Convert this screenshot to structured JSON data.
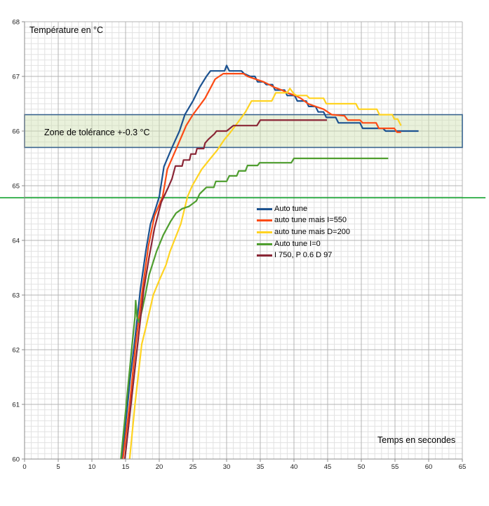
{
  "chart_data": {
    "type": "line",
    "title": "",
    "ylabel": "Température en °C",
    "xlabel": "Temps en secondes",
    "xlim": [
      0,
      65
    ],
    "ylim": [
      60,
      68
    ],
    "x_ticks": [
      0,
      5,
      10,
      15,
      20,
      25,
      30,
      35,
      40,
      45,
      50,
      55,
      60,
      65
    ],
    "y_ticks": [
      60,
      61,
      62,
      63,
      64,
      65,
      66,
      67,
      68
    ],
    "x_minor_step": 1,
    "y_minor_step": 0.1,
    "grid": true,
    "legend_position": "inside-middle",
    "tolerance_zone": {
      "label": "Zone de tolérance +-0.3 °C",
      "y_from": 65.7,
      "y_to": 66.3,
      "fill": "#cfdfb0",
      "fill_opacity": 0.45,
      "border": "#3a648f"
    },
    "reference_line": {
      "y": 64.78,
      "color": "#14a330"
    },
    "series": [
      {
        "name": "Auto tune",
        "color": "#1c5290",
        "points": [
          [
            14.45,
            60
          ],
          [
            15.3,
            61
          ],
          [
            15.7,
            61.5
          ],
          [
            16.3,
            62.1
          ],
          [
            17.2,
            63.1
          ],
          [
            18.0,
            63.8
          ],
          [
            18.7,
            64.3
          ],
          [
            19.5,
            64.6
          ],
          [
            20.0,
            64.8
          ],
          [
            20.7,
            65.35
          ],
          [
            21.9,
            65.7
          ],
          [
            23.0,
            66.0
          ],
          [
            23.8,
            66.3
          ],
          [
            25.0,
            66.55
          ],
          [
            26.0,
            66.8
          ],
          [
            27.0,
            67.0
          ],
          [
            27.6,
            67.1
          ],
          [
            29.7,
            67.1
          ],
          [
            30.0,
            67.2
          ],
          [
            30.4,
            67.1
          ],
          [
            32.2,
            67.1
          ],
          [
            32.6,
            67.05
          ],
          [
            33.5,
            67.0
          ],
          [
            34.2,
            67.0
          ],
          [
            34.6,
            66.9
          ],
          [
            35.5,
            66.9
          ],
          [
            35.9,
            66.85
          ],
          [
            36.8,
            66.85
          ],
          [
            37.2,
            66.75
          ],
          [
            38.6,
            66.75
          ],
          [
            39.0,
            66.65
          ],
          [
            40.1,
            66.65
          ],
          [
            40.5,
            66.55
          ],
          [
            41.8,
            66.55
          ],
          [
            42.2,
            66.45
          ],
          [
            43.2,
            66.45
          ],
          [
            43.6,
            66.35
          ],
          [
            44.4,
            66.35
          ],
          [
            44.8,
            66.25
          ],
          [
            46.2,
            66.25
          ],
          [
            46.6,
            66.15
          ],
          [
            49.8,
            66.15
          ],
          [
            50.2,
            66.05
          ],
          [
            53.2,
            66.05
          ],
          [
            53.6,
            66.0
          ],
          [
            58.5,
            66.0
          ]
        ]
      },
      {
        "name": "auto tune mais I=550",
        "color": "#fc4a14",
        "points": [
          [
            14.6,
            60
          ],
          [
            15.6,
            61
          ],
          [
            16.5,
            62.1
          ],
          [
            17.5,
            63.1
          ],
          [
            18.4,
            63.9
          ],
          [
            19.3,
            64.45
          ],
          [
            20.5,
            64.8
          ],
          [
            21.2,
            65.3
          ],
          [
            22.6,
            65.7
          ],
          [
            24.0,
            66.1
          ],
          [
            25.0,
            66.3
          ],
          [
            26.8,
            66.6
          ],
          [
            28.3,
            66.95
          ],
          [
            29.5,
            67.05
          ],
          [
            32.5,
            67.05
          ],
          [
            33.1,
            67.0
          ],
          [
            34.3,
            66.95
          ],
          [
            35.5,
            66.9
          ],
          [
            36.3,
            66.85
          ],
          [
            37.1,
            66.8
          ],
          [
            38.2,
            66.75
          ],
          [
            39.0,
            66.7
          ],
          [
            40.2,
            66.65
          ],
          [
            41.0,
            66.6
          ],
          [
            42.1,
            66.5
          ],
          [
            43.2,
            66.45
          ],
          [
            44.4,
            66.4
          ],
          [
            45.0,
            66.35
          ],
          [
            45.6,
            66.3
          ],
          [
            47.5,
            66.28
          ],
          [
            48.0,
            66.2
          ],
          [
            49.8,
            66.2
          ],
          [
            50.2,
            66.15
          ],
          [
            52.2,
            66.15
          ],
          [
            52.6,
            66.05
          ],
          [
            54.9,
            66.05
          ],
          [
            55.3,
            65.98
          ],
          [
            55.9,
            65.98
          ]
        ]
      },
      {
        "name": "auto tune mais D=200",
        "color": "#ffd321",
        "points": [
          [
            15.6,
            60
          ],
          [
            16.4,
            61
          ],
          [
            17.4,
            62.1
          ],
          [
            18.0,
            62.4
          ],
          [
            19.1,
            63.0
          ],
          [
            20.1,
            63.3
          ],
          [
            21.0,
            63.55
          ],
          [
            21.6,
            63.8
          ],
          [
            23.2,
            64.3
          ],
          [
            24.2,
            64.8
          ],
          [
            24.9,
            65.0
          ],
          [
            26.3,
            65.3
          ],
          [
            27.6,
            65.5
          ],
          [
            28.6,
            65.65
          ],
          [
            29.7,
            65.85
          ],
          [
            30.4,
            65.95
          ],
          [
            31.8,
            66.18
          ],
          [
            32.8,
            66.35
          ],
          [
            33.7,
            66.55
          ],
          [
            36.7,
            66.55
          ],
          [
            37.3,
            66.7
          ],
          [
            39.0,
            66.7
          ],
          [
            39.4,
            66.78
          ],
          [
            40.0,
            66.68
          ],
          [
            40.4,
            66.65
          ],
          [
            41.9,
            66.65
          ],
          [
            42.3,
            66.6
          ],
          [
            44.4,
            66.6
          ],
          [
            44.8,
            66.5
          ],
          [
            49.2,
            66.5
          ],
          [
            49.6,
            66.4
          ],
          [
            52.3,
            66.4
          ],
          [
            52.7,
            66.3
          ],
          [
            54.6,
            66.3
          ],
          [
            54.9,
            66.22
          ],
          [
            55.4,
            66.22
          ],
          [
            55.9,
            66.1
          ]
        ]
      },
      {
        "name": "Auto tune I=0",
        "color": "#4f9e2f",
        "points": [
          [
            14.3,
            60
          ],
          [
            15.1,
            61
          ],
          [
            15.9,
            62
          ],
          [
            16.4,
            62.6
          ],
          [
            16.5,
            62.9
          ],
          [
            16.7,
            62.6
          ],
          [
            17.0,
            62.5
          ],
          [
            17.5,
            62.75
          ],
          [
            18.0,
            63.05
          ],
          [
            18.5,
            63.37
          ],
          [
            19.6,
            63.8
          ],
          [
            20.6,
            64.1
          ],
          [
            21.7,
            64.35
          ],
          [
            22.5,
            64.5
          ],
          [
            23.4,
            64.58
          ],
          [
            24.4,
            64.62
          ],
          [
            25.5,
            64.72
          ],
          [
            26.0,
            64.85
          ],
          [
            27.0,
            64.97
          ],
          [
            28.1,
            64.97
          ],
          [
            28.4,
            65.08
          ],
          [
            30.0,
            65.08
          ],
          [
            30.4,
            65.18
          ],
          [
            31.5,
            65.18
          ],
          [
            31.8,
            65.27
          ],
          [
            32.8,
            65.27
          ],
          [
            33.1,
            65.37
          ],
          [
            34.6,
            65.37
          ],
          [
            34.9,
            65.42
          ],
          [
            39.6,
            65.42
          ],
          [
            40.0,
            65.5
          ],
          [
            54.0,
            65.5
          ]
        ]
      },
      {
        "name": "I 750, P 0.6 D 97",
        "color": "#8a2636",
        "points": [
          [
            14.9,
            60
          ],
          [
            15.8,
            61
          ],
          [
            16.7,
            62
          ],
          [
            17.7,
            63.1
          ],
          [
            18.5,
            63.7
          ],
          [
            19.3,
            64.23
          ],
          [
            20.3,
            64.7
          ],
          [
            21.3,
            64.96
          ],
          [
            21.9,
            65.13
          ],
          [
            22.4,
            65.36
          ],
          [
            23.4,
            65.36
          ],
          [
            23.6,
            65.47
          ],
          [
            24.5,
            65.47
          ],
          [
            24.7,
            65.58
          ],
          [
            25.4,
            65.58
          ],
          [
            25.6,
            65.68
          ],
          [
            26.6,
            65.68
          ],
          [
            26.8,
            65.78
          ],
          [
            27.3,
            65.85
          ],
          [
            28.2,
            65.95
          ],
          [
            28.5,
            66.0
          ],
          [
            30.0,
            66.0
          ],
          [
            30.5,
            66.05
          ],
          [
            31.0,
            66.1
          ],
          [
            34.5,
            66.1
          ],
          [
            35.0,
            66.2
          ],
          [
            44.9,
            66.2
          ]
        ]
      }
    ]
  }
}
